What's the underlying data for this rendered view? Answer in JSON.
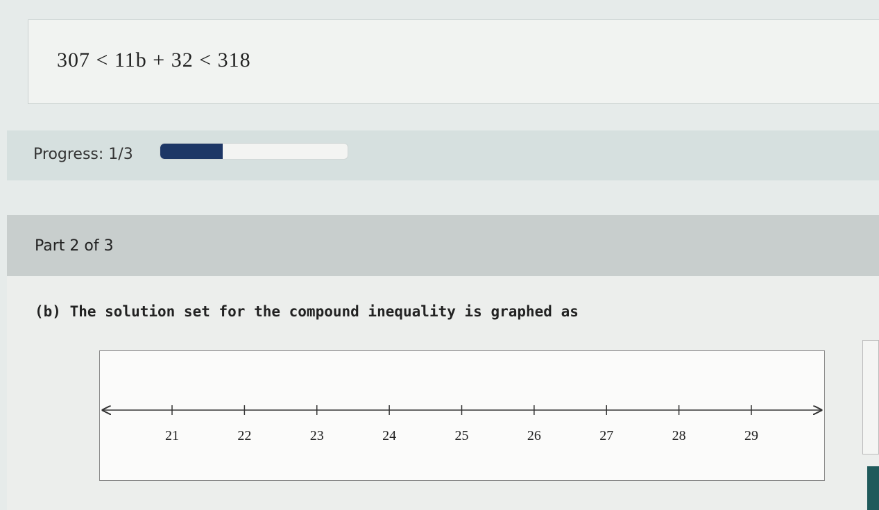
{
  "equation": "307 < 11b + 32 < 318",
  "progress": {
    "label": "Progress: 1/3"
  },
  "part": {
    "title": "Part 2 of 3"
  },
  "question": {
    "text": "(b) The solution set for the compound inequality is graphed as"
  },
  "number_line": {
    "ticks": [
      21,
      22,
      23,
      24,
      25,
      26,
      27,
      28,
      29
    ]
  }
}
